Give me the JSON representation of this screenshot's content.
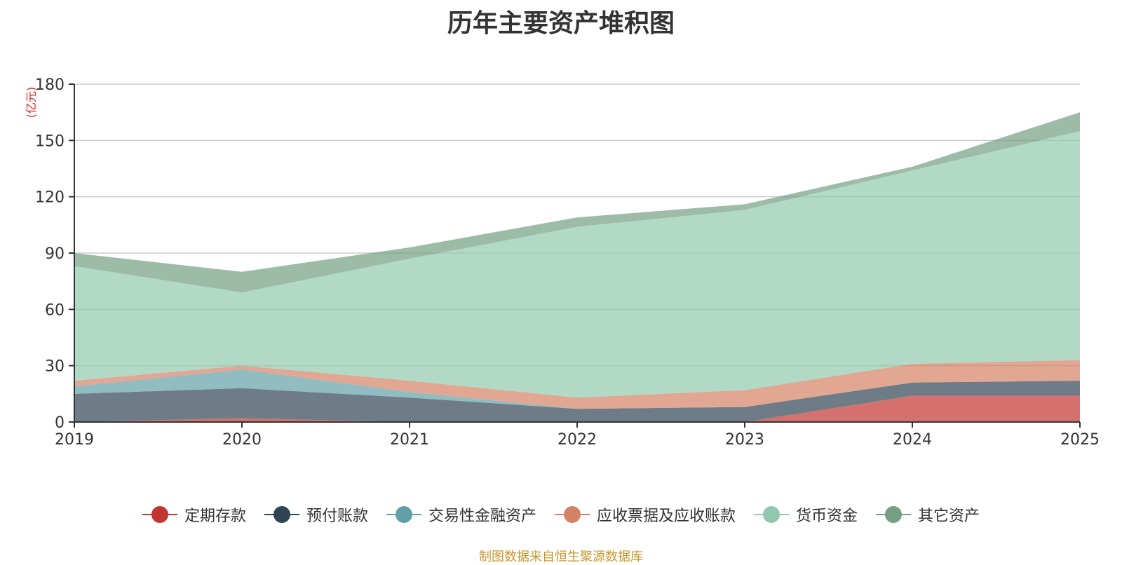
{
  "chart_data": {
    "type": "area",
    "title": "历年主要资产堆积图",
    "ylabel": "(亿元)",
    "source": "制图数据来自恒生聚源数据库",
    "x": [
      "2019",
      "2020",
      "2021",
      "2022",
      "2023",
      "2024",
      "2025"
    ],
    "ylim": [
      0,
      180
    ],
    "yticks": [
      0,
      30,
      60,
      90,
      120,
      150,
      180
    ],
    "stacked": true,
    "grid": true,
    "legend_position": "bottom",
    "series": [
      {
        "name": "定期存款",
        "color": "#c23531",
        "values": [
          0,
          2,
          0,
          0,
          0,
          14,
          14
        ]
      },
      {
        "name": "预付账款",
        "color": "#2f4554",
        "values": [
          15,
          16,
          13,
          7,
          8,
          7,
          8
        ]
      },
      {
        "name": "交易性金融资产",
        "color": "#61a0a8",
        "values": [
          4,
          10,
          3,
          0,
          0,
          0,
          0
        ]
      },
      {
        "name": "应收票据及应收账款",
        "color": "#d48265",
        "values": [
          3,
          2,
          6,
          6,
          9,
          10,
          11
        ]
      },
      {
        "name": "货币资金",
        "color": "#91c7ae",
        "values": [
          61,
          39,
          65,
          91,
          96,
          103,
          122
        ]
      },
      {
        "name": "其它资产",
        "color": "#749f83",
        "values": [
          7,
          11,
          6,
          5,
          3,
          2,
          10
        ]
      }
    ]
  }
}
